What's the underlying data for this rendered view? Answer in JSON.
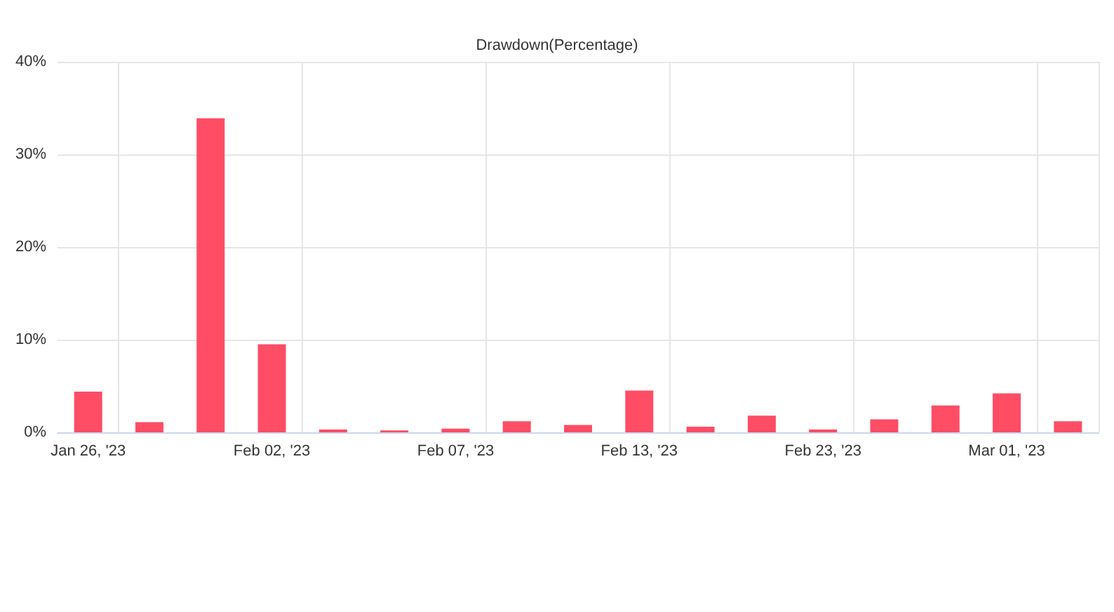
{
  "chart_data": {
    "type": "bar",
    "title": "Drawdown(Percentage)",
    "categories": [
      "Jan 26, '23",
      null,
      null,
      "Feb 02, '23",
      null,
      null,
      "Feb 07, '23",
      null,
      null,
      "Feb 13, '23",
      null,
      null,
      "Feb 23, '23",
      null,
      null,
      "Mar 01, '23",
      null
    ],
    "values": [
      4.4,
      1.1,
      33.9,
      9.5,
      0.3,
      0.2,
      0.4,
      1.2,
      0.8,
      4.5,
      0.6,
      1.8,
      0.3,
      1.4,
      2.9,
      4.2,
      1.2
    ],
    "color": "#ff4d65",
    "ylim": [
      0,
      40
    ],
    "yticks": [
      {
        "value": 0,
        "label": "0%"
      },
      {
        "value": 10,
        "label": "10%"
      },
      {
        "value": 20,
        "label": "20%"
      },
      {
        "value": 30,
        "label": "30%"
      },
      {
        "value": 40,
        "label": "40%"
      }
    ],
    "grid": true
  }
}
